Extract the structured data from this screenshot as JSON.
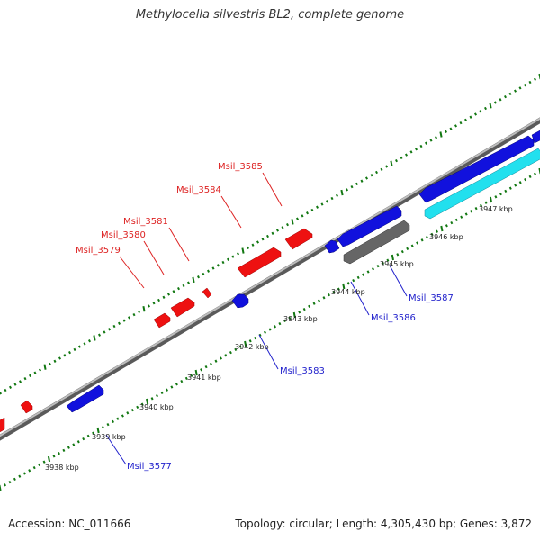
{
  "title": "Methylocella silvestris BL2, complete genome",
  "footer": {
    "accession": "Accession: NC_011666",
    "topology": "Topology: circular; Length: 4,305,430 bp; Genes: 3,872"
  },
  "colors": {
    "forward": "#ee1111",
    "reverse": "#1111dd",
    "grey": "#666666",
    "cyan": "#22e0ee",
    "backbone": "#888888",
    "ticks": "#117711",
    "forward_label": "#dd2222",
    "reverse_label": "#2222cc"
  },
  "kbp_labels": [
    "3938 kbp",
    "3939 kbp",
    "3940 kbp",
    "3941 kbp",
    "3942 kbp",
    "3943 kbp",
    "3944 kbp",
    "3945 kbp",
    "3946 kbp",
    "3947 kbp"
  ],
  "forward_gene_labels": [
    "Msil_3579",
    "Msil_3580",
    "Msil_3581",
    "Msil_3584",
    "Msil_3585"
  ],
  "reverse_gene_labels": [
    "Msil_3577",
    "Msil_3583",
    "Msil_3586",
    "Msil_3587"
  ]
}
